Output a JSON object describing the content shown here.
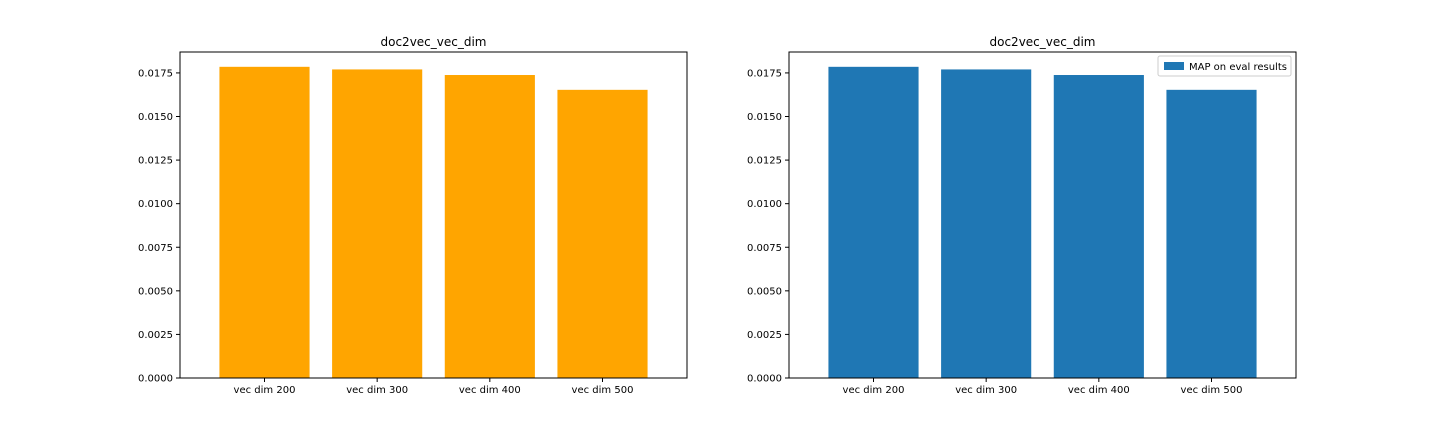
{
  "chart_data": [
    {
      "type": "bar",
      "title": "doc2vec_vec_dim",
      "xlabel": "",
      "ylabel": "",
      "categories": [
        "vec dim 200",
        "vec dim 300",
        "vec dim 400",
        "vec dim 500"
      ],
      "values": [
        0.01785,
        0.0177,
        0.01738,
        0.01653
      ],
      "ylim": [
        0,
        0.0187
      ],
      "yticks": [
        "0.0000",
        "0.0025",
        "0.0050",
        "0.0075",
        "0.0100",
        "0.0125",
        "0.0150",
        "0.0175"
      ],
      "color": "#ffa500",
      "legend": null,
      "grid": false
    },
    {
      "type": "bar",
      "title": "doc2vec_vec_dim",
      "xlabel": "",
      "ylabel": "",
      "categories": [
        "vec dim 200",
        "vec dim 300",
        "vec dim 400",
        "vec dim 500"
      ],
      "series": [
        {
          "name": "MAP on eval results",
          "values": [
            0.01785,
            0.0177,
            0.01738,
            0.01653
          ]
        }
      ],
      "ylim": [
        0,
        0.0187
      ],
      "yticks": [
        "0.0000",
        "0.0025",
        "0.0050",
        "0.0075",
        "0.0100",
        "0.0125",
        "0.0150",
        "0.0175"
      ],
      "color": "#1f77b4",
      "legend": "top-right",
      "grid": false
    }
  ]
}
